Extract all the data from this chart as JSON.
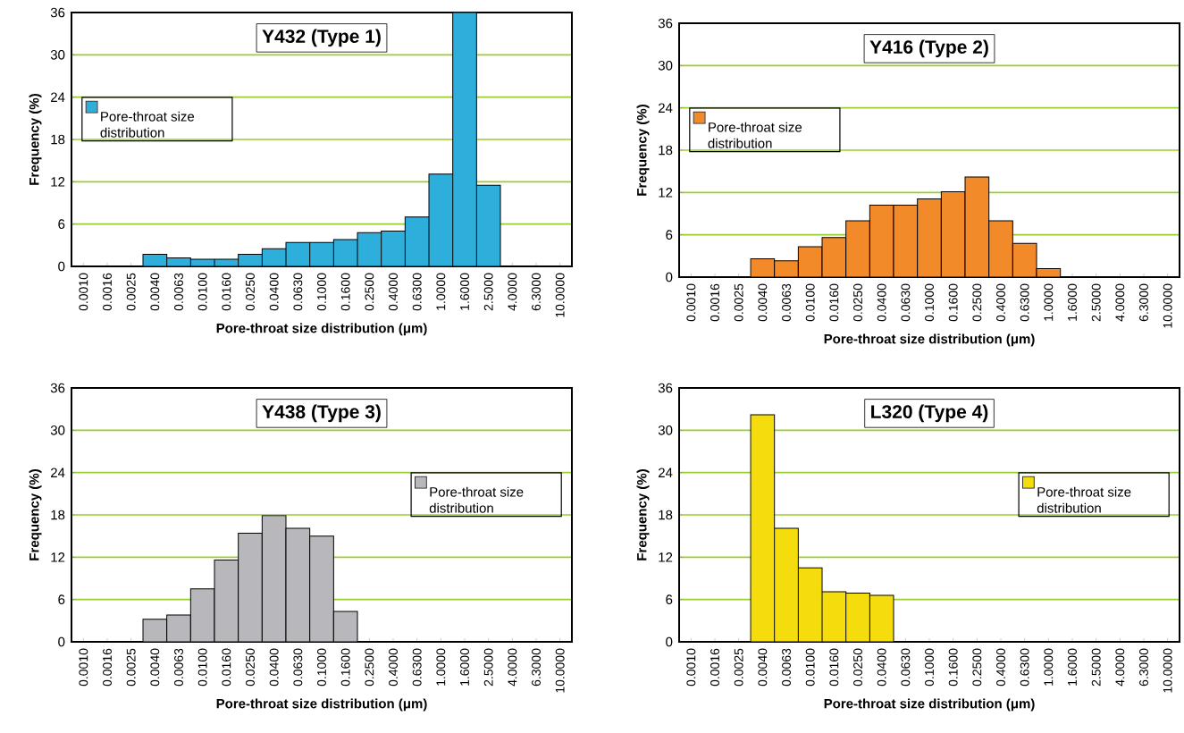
{
  "chart_data": [
    {
      "type": "bar",
      "title": "Y432 (Type 1)",
      "xlabel": "Pore-throat size distribution   (μm)",
      "ylabel": "Frequency   (%)",
      "categories": [
        "0.0010",
        "0.0016",
        "0.0025",
        "0.0040",
        "0.0063",
        "0.0100",
        "0.0160",
        "0.0250",
        "0.0400",
        "0.0630",
        "0.1000",
        "0.1600",
        "0.2500",
        "0.4000",
        "0.6300",
        "1.0000",
        "1.6000",
        "2.5000",
        "4.0000",
        "6.3000",
        "10.0000"
      ],
      "series": [
        {
          "name": "Pore-throat size distribution",
          "color": "#2eaedb",
          "values": [
            null,
            null,
            null,
            1.7,
            1.2,
            1.0,
            1.0,
            1.7,
            2.5,
            3.4,
            3.4,
            3.8,
            4.8,
            5.0,
            7.0,
            13.1,
            36,
            11.5,
            null,
            null,
            null
          ]
        }
      ],
      "ylim": [
        0,
        36
      ],
      "yticks": [
        0,
        6,
        12,
        18,
        24,
        30,
        36
      ],
      "grid": "y",
      "legend": "left"
    },
    {
      "type": "bar",
      "title": "Y416 (Type 2)",
      "xlabel": "Pore-throat size distribution   (μm)",
      "ylabel": "Frequency   (%)",
      "categories": [
        "0.0010",
        "0.0016",
        "0.0025",
        "0.0040",
        "0.0063",
        "0.0100",
        "0.0160",
        "0.0250",
        "0.0400",
        "0.0630",
        "0.1000",
        "0.1600",
        "0.2500",
        "0.4000",
        "0.6300",
        "1.0000",
        "1.6000",
        "2.5000",
        "4.0000",
        "6.3000",
        "10.0000"
      ],
      "series": [
        {
          "name": "Pore-throat size distribution",
          "color": "#f28a2a",
          "values": [
            null,
            null,
            null,
            2.6,
            2.3,
            4.3,
            5.6,
            8.0,
            10.2,
            10.2,
            11.1,
            12.1,
            14.2,
            8.0,
            4.8,
            1.2,
            null,
            null,
            null,
            null,
            null
          ]
        }
      ],
      "ylim": [
        0,
        36
      ],
      "yticks": [
        0,
        6,
        12,
        18,
        24,
        30,
        36
      ],
      "grid": "y",
      "legend": "left"
    },
    {
      "type": "bar",
      "title": "Y438 (Type 3)",
      "xlabel": "Pore-throat size distribution   (μm)",
      "ylabel": "Frequency   (%)",
      "categories": [
        "0.0010",
        "0.0016",
        "0.0025",
        "0.0040",
        "0.0063",
        "0.0100",
        "0.0160",
        "0.0250",
        "0.0400",
        "0.0630",
        "0.1000",
        "0.1600",
        "0.2500",
        "0.4000",
        "0.6300",
        "1.0000",
        "1.6000",
        "2.5000",
        "4.0000",
        "6.3000",
        "10.0000"
      ],
      "series": [
        {
          "name": "Pore-throat size distribution",
          "color": "#b8b8bc",
          "values": [
            null,
            null,
            null,
            3.2,
            3.8,
            7.5,
            11.6,
            15.4,
            17.9,
            16.1,
            15.0,
            4.3,
            null,
            null,
            null,
            null,
            null,
            null,
            null,
            null,
            null
          ]
        }
      ],
      "ylim": [
        0,
        36
      ],
      "yticks": [
        0,
        6,
        12,
        18,
        24,
        30,
        36
      ],
      "grid": "y",
      "legend": "right"
    },
    {
      "type": "bar",
      "title": "L320 (Type 4)",
      "xlabel": "Pore-throat size distribution   (μm)",
      "ylabel": "Frequency   (%)",
      "categories": [
        "0.0010",
        "0.0016",
        "0.0025",
        "0.0040",
        "0.0063",
        "0.0100",
        "0.0160",
        "0.0250",
        "0.0400",
        "0.0630",
        "0.1000",
        "0.1600",
        "0.2500",
        "0.4000",
        "0.6300",
        "1.0000",
        "1.6000",
        "2.5000",
        "4.0000",
        "6.3000",
        "10.0000"
      ],
      "series": [
        {
          "name": "Pore-throat size distribution",
          "color": "#f5dc0c",
          "values": [
            null,
            null,
            null,
            32.2,
            16.1,
            10.5,
            7.1,
            6.9,
            6.6,
            null,
            null,
            null,
            null,
            null,
            null,
            null,
            null,
            null,
            null,
            null,
            null
          ]
        }
      ],
      "ylim": [
        0,
        36
      ],
      "yticks": [
        0,
        6,
        12,
        18,
        24,
        30,
        36
      ],
      "grid": "y",
      "legend": "right"
    }
  ]
}
